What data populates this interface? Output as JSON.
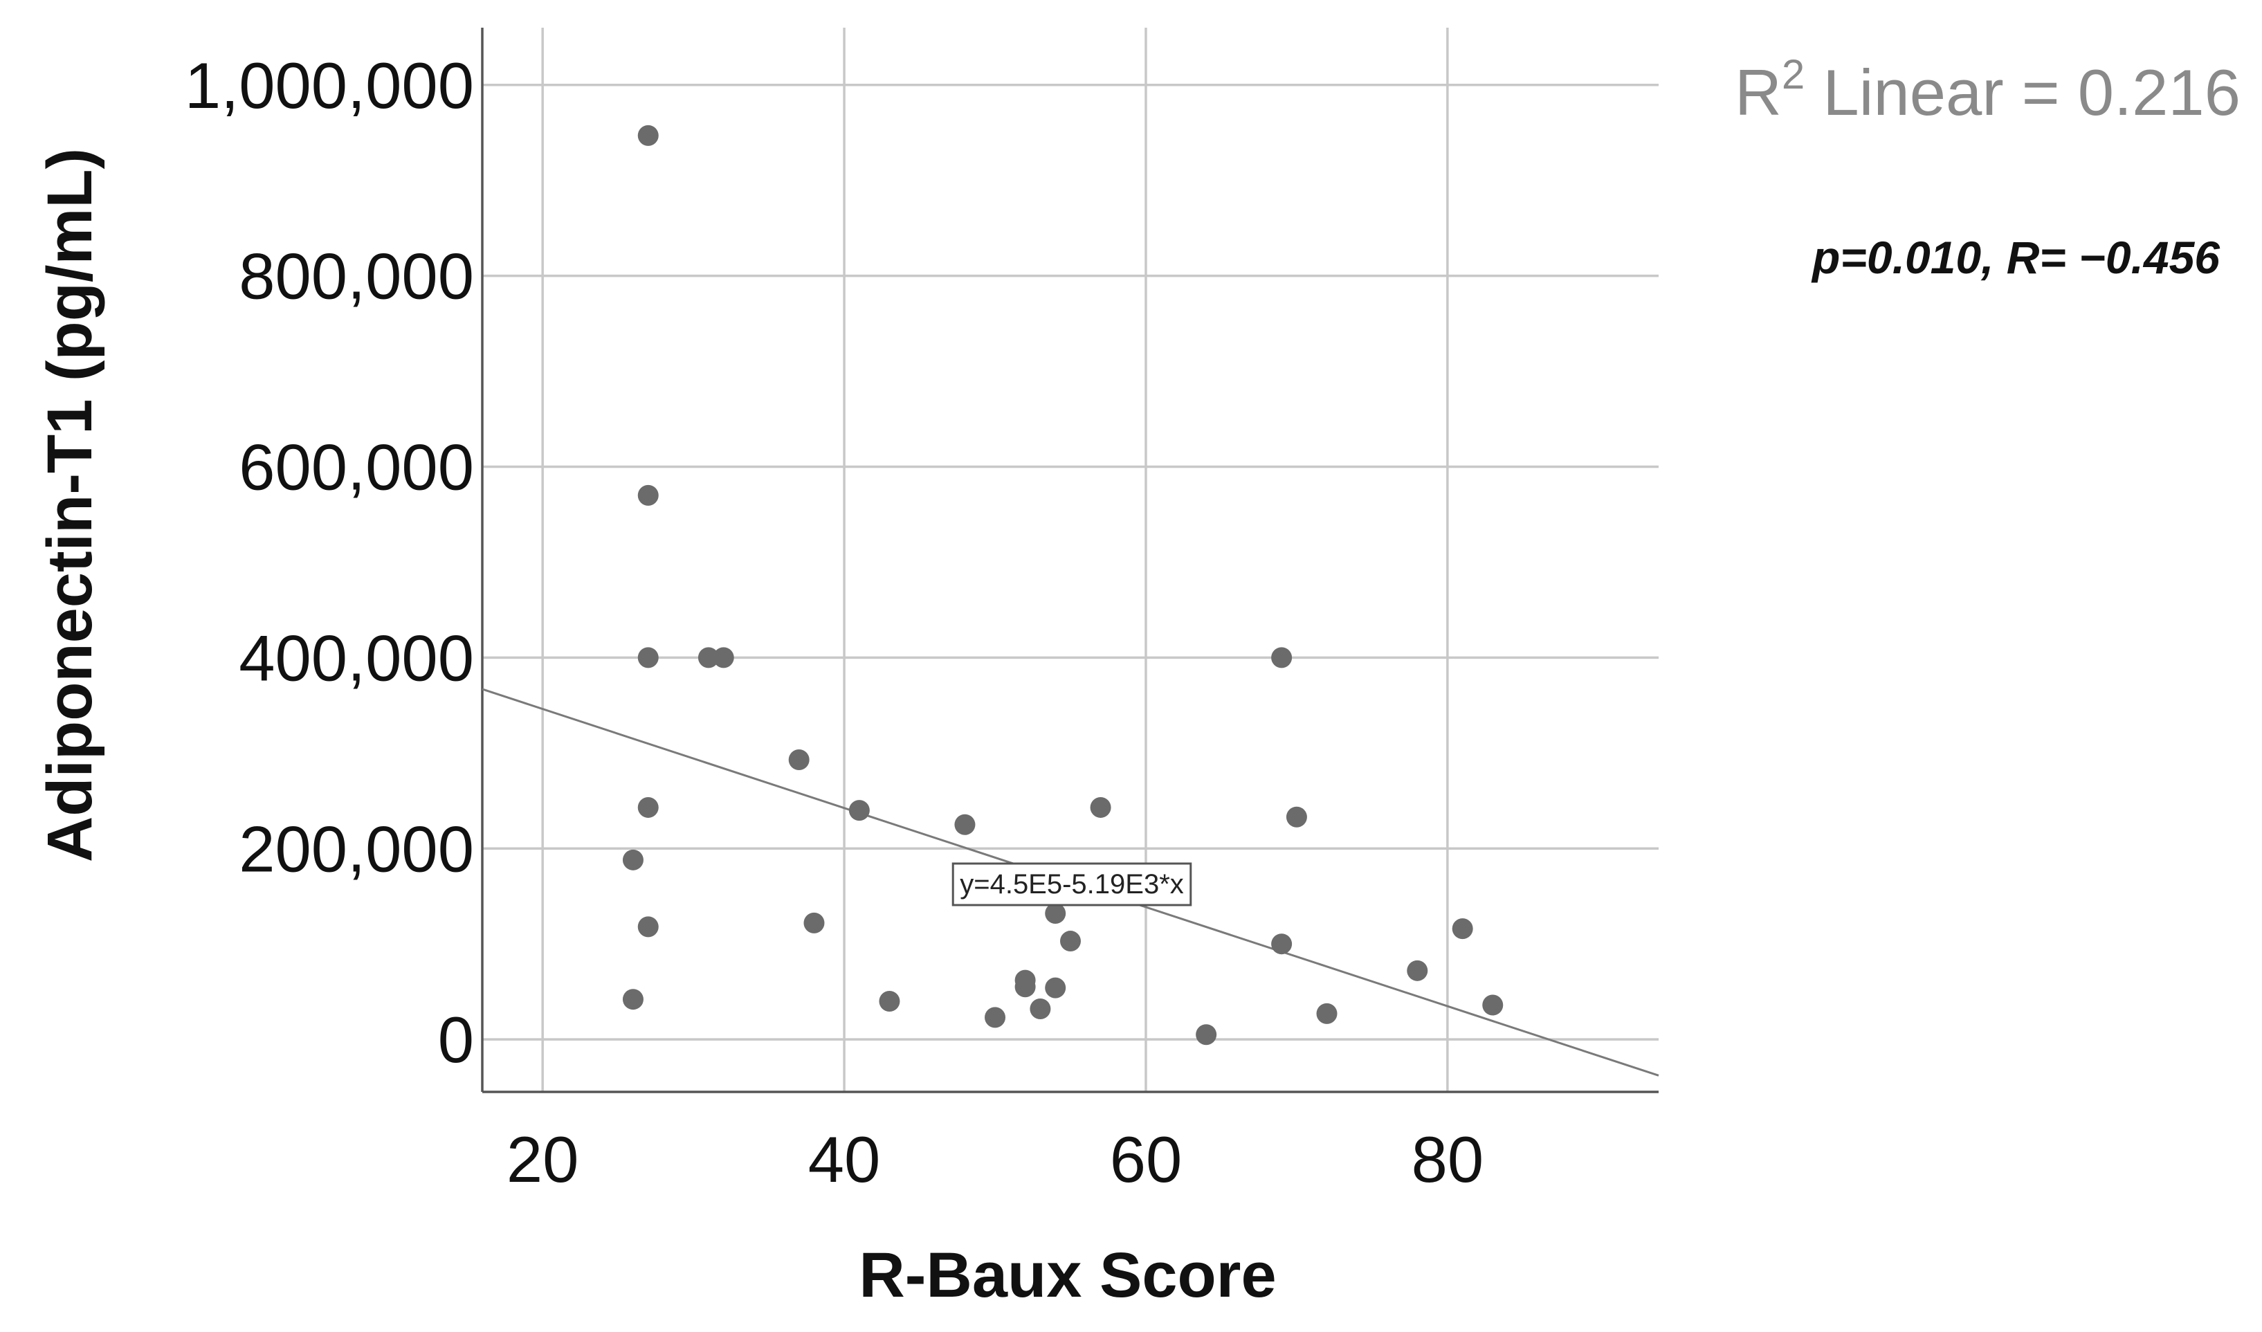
{
  "chart_data": {
    "type": "scatter",
    "xlabel": "R-Baux Score",
    "ylabel": "Adiponectin-T1 (pg/mL)",
    "xlim": [
      16,
      94
    ],
    "ylim": [
      -55000,
      1060000
    ],
    "x_ticks": [
      20,
      40,
      60,
      80
    ],
    "x_tick_labels": [
      "20",
      "40",
      "60",
      "80"
    ],
    "y_ticks": [
      0,
      200000,
      400000,
      600000,
      800000,
      1000000
    ],
    "y_tick_labels": [
      "0",
      "200,000",
      "400,000",
      "600,000",
      "800,000",
      "1,000,000"
    ],
    "grid": true,
    "points": [
      {
        "x": 27,
        "y": 947000
      },
      {
        "x": 27,
        "y": 570000
      },
      {
        "x": 27,
        "y": 400000
      },
      {
        "x": 31,
        "y": 400000
      },
      {
        "x": 32,
        "y": 400000
      },
      {
        "x": 37,
        "y": 293000
      },
      {
        "x": 27,
        "y": 243000
      },
      {
        "x": 41,
        "y": 240000
      },
      {
        "x": 48,
        "y": 225000
      },
      {
        "x": 57,
        "y": 243000
      },
      {
        "x": 70,
        "y": 233000
      },
      {
        "x": 69,
        "y": 400000
      },
      {
        "x": 26,
        "y": 188000
      },
      {
        "x": 27,
        "y": 118000
      },
      {
        "x": 38,
        "y": 122000
      },
      {
        "x": 54,
        "y": 132000
      },
      {
        "x": 55,
        "y": 103000
      },
      {
        "x": 69,
        "y": 100000
      },
      {
        "x": 78,
        "y": 72000
      },
      {
        "x": 81,
        "y": 116000
      },
      {
        "x": 26,
        "y": 42000
      },
      {
        "x": 43,
        "y": 40000
      },
      {
        "x": 52,
        "y": 62000
      },
      {
        "x": 52,
        "y": 55000
      },
      {
        "x": 54,
        "y": 54000
      },
      {
        "x": 53,
        "y": 32000
      },
      {
        "x": 50,
        "y": 23000
      },
      {
        "x": 64,
        "y": 5000
      },
      {
        "x": 72,
        "y": 27000
      },
      {
        "x": 83,
        "y": 36000
      }
    ],
    "fit_line": {
      "intercept": 450000,
      "slope": -5190,
      "equation_label": "y=4.5E5-5.19E3*x"
    },
    "r_squared_label": {
      "prefix": "R",
      "superscript": "2",
      "text": " Linear = 0.216"
    },
    "stat_annotation": "p=0.010, R= −0.456",
    "colors": {
      "points": "#6b6b6b",
      "fit_line": "#7a7a7a",
      "grid": "#c8c8c8",
      "r_squared_text": "#8a8a8a"
    }
  }
}
